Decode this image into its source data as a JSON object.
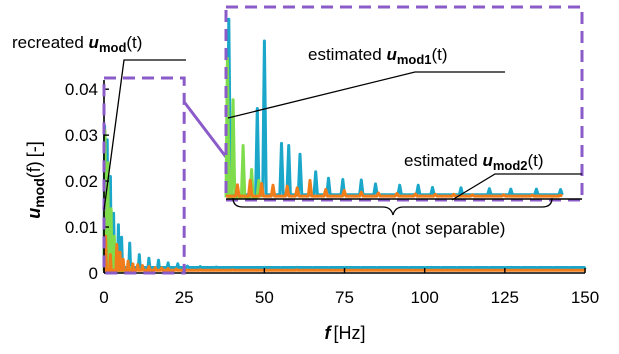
{
  "chart_data": {
    "type": "line",
    "title": "",
    "xlabel": {
      "symbol": "f",
      "unit": "[Hz]"
    },
    "ylabel": {
      "symbol": "u",
      "subscript": "mod",
      "arg": "(f)",
      "unit": "[-]"
    },
    "xlim": [
      0,
      150
    ],
    "ylim": [
      0,
      0.042
    ],
    "x_ticks": [
      "0",
      "25",
      "50",
      "75",
      "100",
      "125",
      "150"
    ],
    "y_ticks": [
      "0",
      "0.01",
      "0.02",
      "0.03",
      "0.04"
    ],
    "grid": false,
    "series": [
      {
        "key": "recreated",
        "color": "#1aa7c9",
        "base": 0.0012,
        "peaks": [
          [
            0.2,
            0.032
          ],
          [
            1,
            0.029
          ],
          [
            2,
            0.021
          ],
          [
            3,
            0.013
          ],
          [
            4.5,
            0.0105
          ],
          [
            5.5,
            0.0078
          ],
          [
            8,
            0.0065
          ],
          [
            11,
            0.004
          ],
          [
            14,
            0.0032
          ],
          [
            17,
            0.0028
          ],
          [
            20,
            0.0022
          ],
          [
            23,
            0.002
          ],
          [
            26,
            0.0015
          ],
          [
            30,
            0.0014
          ],
          [
            35,
            0.0013
          ],
          [
            40,
            0.0012
          ],
          [
            45,
            0.0012
          ],
          [
            50,
            0.0011
          ],
          [
            55,
            0.0011
          ],
          [
            60,
            0.0012
          ],
          [
            65,
            0.0011
          ],
          [
            70,
            0.0011
          ],
          [
            75,
            0.0011
          ],
          [
            80,
            0.0011
          ],
          [
            85,
            0.0011
          ],
          [
            90,
            0.0012
          ],
          [
            95,
            0.0011
          ],
          [
            100,
            0.0011
          ],
          [
            105,
            0.0011
          ],
          [
            110,
            0.0011
          ],
          [
            115,
            0.0011
          ],
          [
            120,
            0.0011
          ],
          [
            125,
            0.0011
          ],
          [
            130,
            0.0011
          ],
          [
            135,
            0.0011
          ],
          [
            140,
            0.0011
          ],
          [
            145,
            0.0011
          ],
          [
            150,
            0.0011
          ]
        ]
      },
      {
        "key": "mod1",
        "color": "#7fdc4c",
        "base": 0.0005,
        "peaks": [
          [
            0.3,
            0.031
          ],
          [
            1.2,
            0.024
          ],
          [
            2.2,
            0.014
          ],
          [
            3.2,
            0.008
          ],
          [
            4.5,
            0.004
          ],
          [
            6,
            0.002
          ],
          [
            8,
            0.0012
          ]
        ]
      },
      {
        "key": "mod2",
        "color": "#f07d1a",
        "base": 0.0006,
        "peaks": [
          [
            0.5,
            0.008
          ],
          [
            2,
            0.004
          ],
          [
            4,
            0.0062
          ],
          [
            5,
            0.0045
          ],
          [
            6,
            0.003
          ],
          [
            7.5,
            0.0026
          ],
          [
            9,
            0.002
          ],
          [
            10.5,
            0.0018
          ],
          [
            12,
            0.0016
          ],
          [
            14,
            0.0014
          ],
          [
            16,
            0.0012
          ],
          [
            18,
            0.0011
          ],
          [
            20,
            0.001
          ],
          [
            22.5,
            0.0009
          ],
          [
            25,
            0.0008
          ],
          [
            30,
            0.0007
          ],
          [
            40,
            0.0007
          ],
          [
            60,
            0.0007
          ],
          [
            80,
            0.0006
          ],
          [
            100,
            0.0006
          ],
          [
            120,
            0.0006
          ],
          [
            150,
            0.0006
          ]
        ]
      }
    ],
    "inset": {
      "xlim": [
        0,
        25
      ],
      "ylim": [
        0,
        0.042
      ],
      "series": [
        {
          "key": "recreated",
          "color": "#1aa7c9",
          "peaks": [
            [
              0.2,
              0.0415
            ],
            [
              2.2,
              0.021
            ],
            [
              2.7,
              0.0365
            ],
            [
              3.9,
              0.013
            ],
            [
              4.4,
              0.0125
            ],
            [
              5.2,
              0.0105
            ],
            [
              6.3,
              0.0065
            ],
            [
              7.2,
              0.005
            ],
            [
              8.2,
              0.0047
            ],
            [
              9.5,
              0.0046
            ],
            [
              10.5,
              0.0037
            ],
            [
              12.2,
              0.0034
            ],
            [
              13.5,
              0.0034
            ],
            [
              14.5,
              0.0029
            ],
            [
              16.5,
              0.0028
            ],
            [
              18.5,
              0.0026
            ],
            [
              20,
              0.0025
            ],
            [
              21.8,
              0.0025
            ],
            [
              23.5,
              0.0024
            ]
          ],
          "base": 0.0012
        },
        {
          "key": "mod1",
          "color": "#7fdc4c",
          "peaks": [
            [
              0.1,
              0.0325
            ],
            [
              0.5,
              0.023
            ],
            [
              1.2,
              0.0125
            ],
            [
              1.8,
              0.007
            ],
            [
              2.3,
              0.0045
            ]
          ],
          "base": 0.0006
        },
        {
          "key": "mod2",
          "color": "#f07d1a",
          "peaks": [
            [
              0.8,
              0.0035
            ],
            [
              1.7,
              0.0045
            ],
            [
              2.5,
              0.0038
            ],
            [
              3.3,
              0.0034
            ],
            [
              4.3,
              0.0032
            ],
            [
              5.0,
              0.0028
            ],
            [
              5.9,
              0.0045
            ],
            [
              7.0,
              0.0024
            ],
            [
              8.3,
              0.0022
            ],
            [
              9.5,
              0.0018
            ],
            [
              10.7,
              0.0016
            ],
            [
              12.0,
              0.0015
            ],
            [
              13.3,
              0.0014
            ],
            [
              14.7,
              0.0013
            ],
            [
              16.0,
              0.0013
            ],
            [
              17.3,
              0.0012
            ],
            [
              19.5,
              0.0012
            ],
            [
              21.5,
              0.0011
            ],
            [
              23.5,
              0.0011
            ]
          ],
          "base": 0.0009
        }
      ]
    },
    "annotations": {
      "recreated": {
        "prefix": "recreated ",
        "symbol": "u",
        "subscript": "mod",
        "arg": "(t)",
        "color": "#1aa7c9"
      },
      "mod1": {
        "prefix": "estimated ",
        "symbol": "u",
        "subscript": "mod1",
        "arg": "(t)",
        "color": "#7fdc4c"
      },
      "mod2": {
        "prefix": "estimated ",
        "symbol": "u",
        "subscript": "mod2",
        "arg": "(t)",
        "color": "#f07d1a"
      },
      "mixed": "mixed spectra (not separable)"
    },
    "colors": {
      "zoom_box": "#8b5cc9",
      "axis": "#000000"
    }
  }
}
